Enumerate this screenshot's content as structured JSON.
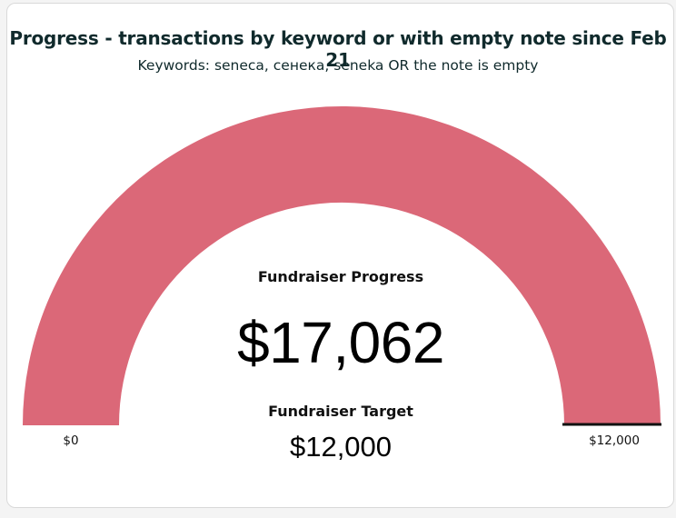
{
  "chart_data": {
    "type": "gauge",
    "title": "Progress - transactions by keyword or with empty note since Feb 21",
    "subtitle": "Keywords: seneca, сенека, seneka OR the note is empty",
    "progress_label": "Fundraiser Progress",
    "progress_value": 17062,
    "progress_display": "$17,062",
    "target_label": "Fundraiser Target",
    "target_value": 12000,
    "target_display": "$12,000",
    "range": [
      0,
      12000
    ],
    "min_label": "$0",
    "max_label": "$12,000",
    "fill_fraction": 1.0,
    "colors": {
      "fill": "#db6878",
      "target_marker": "#111111",
      "title": "#102a2c"
    }
  }
}
